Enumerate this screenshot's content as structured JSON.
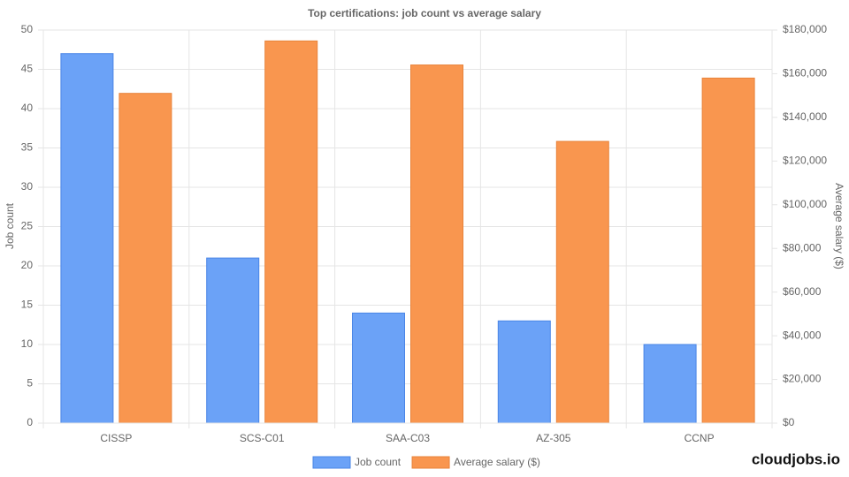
{
  "chart_data": {
    "type": "bar",
    "title": "Top certifications: job count vs average salary",
    "categories": [
      "CISSP",
      "SCS-C01",
      "SAA-C03",
      "AZ-305",
      "CCNP"
    ],
    "series": [
      {
        "name": "Job count",
        "color": "#6ba2f7",
        "axis": "y",
        "values": [
          47,
          21,
          14,
          13,
          10
        ]
      },
      {
        "name": "Average salary ($)",
        "color": "#f9964f",
        "axis": "y2",
        "values": [
          151000,
          175000,
          164000,
          129000,
          158000
        ]
      }
    ],
    "y_label": "Job count",
    "y2_label": "Average salary ($)",
    "ylim": [
      0,
      50
    ],
    "yticks": [
      0,
      5,
      10,
      15,
      20,
      25,
      30,
      35,
      40,
      45,
      50
    ],
    "y2lim": [
      0,
      180000
    ],
    "y2ticks": [
      {
        "value": 0,
        "label": "$0"
      },
      {
        "value": 20000,
        "label": "$20,000"
      },
      {
        "value": 40000,
        "label": "$40,000"
      },
      {
        "value": 60000,
        "label": "$60,000"
      },
      {
        "value": 80000,
        "label": "$80,000"
      },
      {
        "value": 100000,
        "label": "$100,000"
      },
      {
        "value": 120000,
        "label": "$120,000"
      },
      {
        "value": 140000,
        "label": "$140,000"
      },
      {
        "value": 160000,
        "label": "$160,000"
      },
      {
        "value": 180000,
        "label": "$180,000"
      }
    ],
    "grid": true,
    "legend": "bottom",
    "watermark": "cloudjobs.io"
  }
}
